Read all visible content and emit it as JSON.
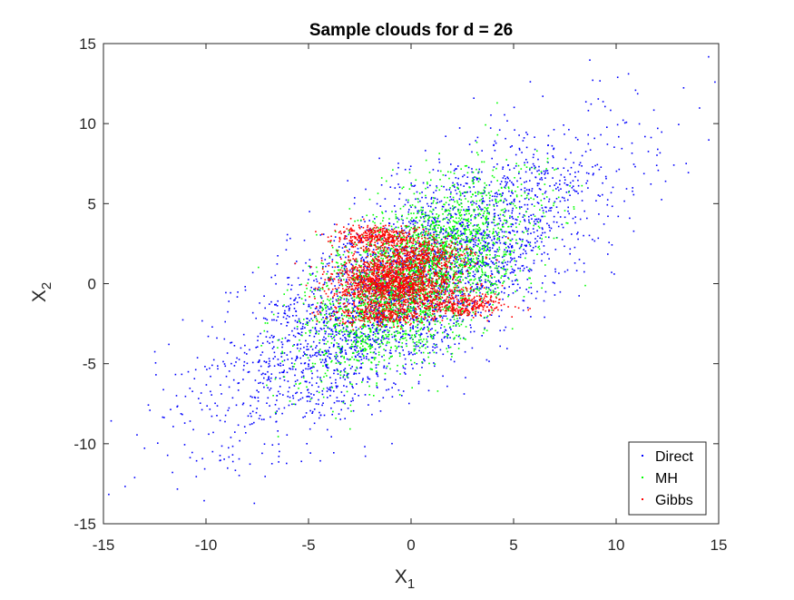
{
  "chart_data": {
    "type": "scatter",
    "title": "Sample clouds for d = 26",
    "xlabel": "X",
    "xlabel_sub": "1",
    "ylabel": "X",
    "ylabel_sub": "2",
    "xlim": [
      -15,
      15
    ],
    "ylim": [
      -15,
      15
    ],
    "xticks": [
      -15,
      -10,
      -5,
      0,
      5,
      10,
      15
    ],
    "yticks": [
      -15,
      -10,
      -5,
      0,
      5,
      10,
      15
    ],
    "xtick_labels": [
      "-15",
      "-10",
      "-5",
      "0",
      "5",
      "10",
      "15"
    ],
    "ytick_labels": [
      "-15",
      "-10",
      "-5",
      "0",
      "5",
      "10",
      "15"
    ],
    "grid": false,
    "legend_position": "bottom-right",
    "series": [
      {
        "name": "Direct",
        "color": "#0000ff",
        "distribution": {
          "mean": [
            0,
            0
          ],
          "sd": [
            4.6,
            4.3
          ],
          "corr": 0.75
        },
        "n_points": 3400
      },
      {
        "name": "MH",
        "color": "#00ff00",
        "distribution": {
          "mean": [
            0.3,
            0.5
          ],
          "sd": [
            2.6,
            2.9
          ],
          "corr": 0.6
        },
        "n_points": 2800
      },
      {
        "name": "Gibbs",
        "color": "#ff0000",
        "clusters": [
          {
            "mean": [
              -0.8,
              0.0
            ],
            "sd": [
              1.5,
              0.9
            ],
            "corr": -0.05,
            "weight": 0.55
          },
          {
            "mean": [
              -1.6,
              2.9
            ],
            "sd": [
              1.2,
              0.35
            ],
            "corr": 0.0,
            "weight": 0.15
          },
          {
            "mean": [
              0.5,
              1.8
            ],
            "sd": [
              1.3,
              0.5
            ],
            "corr": 0.0,
            "weight": 0.12
          },
          {
            "mean": [
              2.6,
              -1.3
            ],
            "sd": [
              1.1,
              0.4
            ],
            "corr": 0.0,
            "weight": 0.1
          },
          {
            "mean": [
              -1.5,
              -2.0
            ],
            "sd": [
              1.2,
              0.3
            ],
            "corr": 0.0,
            "weight": 0.08
          }
        ],
        "n_points": 2600
      }
    ]
  }
}
